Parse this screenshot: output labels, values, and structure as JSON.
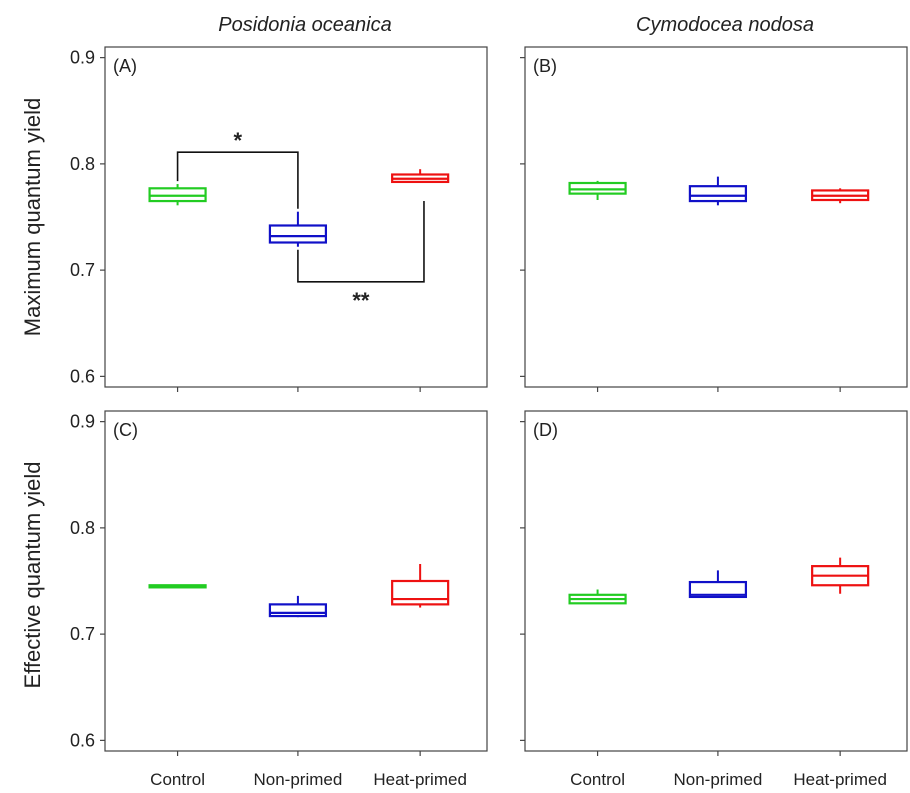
{
  "column_titles": [
    "Posidonia oceanica",
    "Cymodocea nodosa"
  ],
  "y_axis_labels": [
    "Maximum quantum yield",
    "Effective quantum yield"
  ],
  "colors": {
    "Control": "#22cc22",
    "Non-primed": "#1010c8",
    "Heat-primed": "#ee1111"
  },
  "chart_data": [
    {
      "type": "boxplot",
      "panel": "(A)",
      "species": "Posidonia oceanica",
      "ylabel": "Maximum quantum yield",
      "ylim": [
        0.59,
        0.91
      ],
      "yticks": [
        0.6,
        0.7,
        0.8,
        0.9
      ],
      "categories": [
        "Control",
        "Non-primed",
        "Heat-primed"
      ],
      "boxes": [
        {
          "category": "Control",
          "min": 0.761,
          "q1": 0.765,
          "median": 0.77,
          "q3": 0.777,
          "max": 0.781
        },
        {
          "category": "Non-primed",
          "min": 0.722,
          "q1": 0.726,
          "median": 0.732,
          "q3": 0.742,
          "max": 0.755
        },
        {
          "category": "Heat-primed",
          "min": 0.782,
          "q1": 0.783,
          "median": 0.786,
          "q3": 0.79,
          "max": 0.795
        }
      ],
      "significance": [
        {
          "from": "Control",
          "to": "Non-primed",
          "label": "*"
        },
        {
          "from": "Non-primed",
          "to": "Heat-primed",
          "label": "**"
        }
      ]
    },
    {
      "type": "boxplot",
      "panel": "(B)",
      "species": "Cymodocea nodosa",
      "ylabel": "Maximum quantum yield",
      "ylim": [
        0.59,
        0.91
      ],
      "yticks": [
        0.6,
        0.7,
        0.8,
        0.9
      ],
      "categories": [
        "Control",
        "Non-primed",
        "Heat-primed"
      ],
      "boxes": [
        {
          "category": "Control",
          "min": 0.766,
          "q1": 0.772,
          "median": 0.776,
          "q3": 0.782,
          "max": 0.784
        },
        {
          "category": "Non-primed",
          "min": 0.761,
          "q1": 0.765,
          "median": 0.77,
          "q3": 0.779,
          "max": 0.788
        },
        {
          "category": "Heat-primed",
          "min": 0.763,
          "q1": 0.766,
          "median": 0.77,
          "q3": 0.775,
          "max": 0.777
        }
      ]
    },
    {
      "type": "boxplot",
      "panel": "(C)",
      "species": "Posidonia oceanica",
      "ylabel": "Effective quantum yield",
      "ylim": [
        0.59,
        0.91
      ],
      "yticks": [
        0.6,
        0.7,
        0.8,
        0.9
      ],
      "categories": [
        "Control",
        "Non-primed",
        "Heat-primed"
      ],
      "boxes": [
        {
          "category": "Control",
          "min": 0.744,
          "q1": 0.744,
          "median": 0.745,
          "q3": 0.746,
          "max": 0.746
        },
        {
          "category": "Non-primed",
          "min": 0.716,
          "q1": 0.717,
          "median": 0.72,
          "q3": 0.728,
          "max": 0.736
        },
        {
          "category": "Heat-primed",
          "min": 0.725,
          "q1": 0.728,
          "median": 0.733,
          "q3": 0.75,
          "max": 0.766
        }
      ]
    },
    {
      "type": "boxplot",
      "panel": "(D)",
      "species": "Cymodocea nodosa",
      "ylabel": "Effective quantum yield",
      "ylim": [
        0.59,
        0.91
      ],
      "yticks": [
        0.6,
        0.7,
        0.8,
        0.9
      ],
      "categories": [
        "Control",
        "Non-primed",
        "Heat-primed"
      ],
      "boxes": [
        {
          "category": "Control",
          "min": 0.729,
          "q1": 0.729,
          "median": 0.733,
          "q3": 0.737,
          "max": 0.742
        },
        {
          "category": "Non-primed",
          "min": 0.735,
          "q1": 0.735,
          "median": 0.737,
          "q3": 0.749,
          "max": 0.76
        },
        {
          "category": "Heat-primed",
          "min": 0.738,
          "q1": 0.746,
          "median": 0.755,
          "q3": 0.764,
          "max": 0.772
        }
      ]
    }
  ]
}
